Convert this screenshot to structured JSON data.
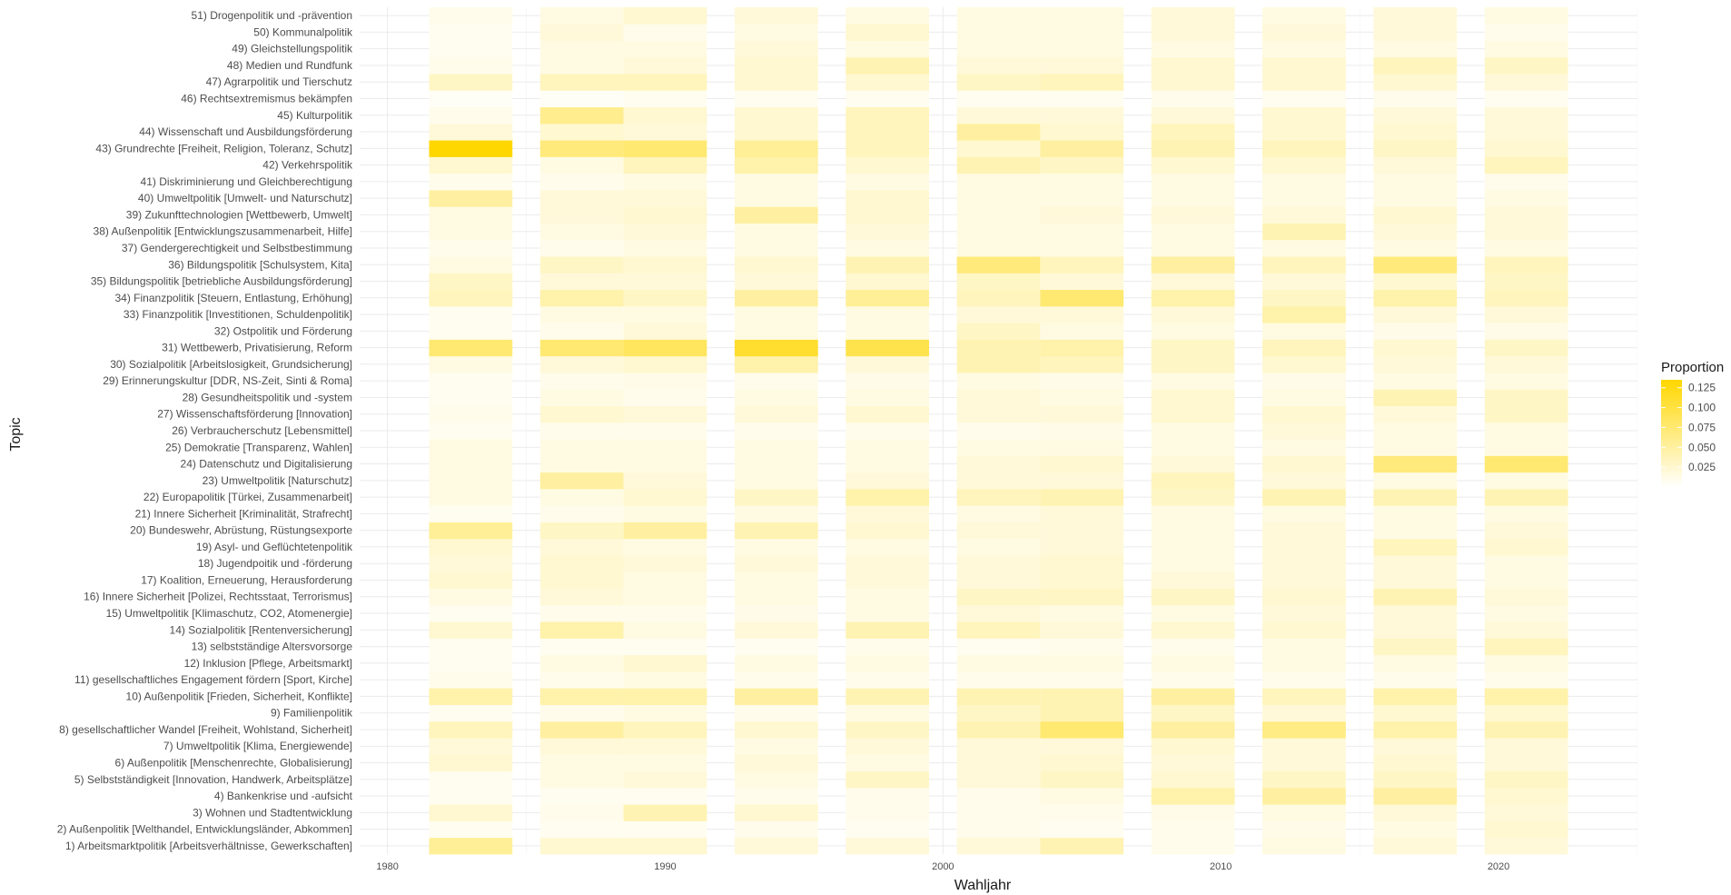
{
  "chart_data": {
    "type": "heatmap",
    "xlabel": "Wahljahr",
    "ylabel": "Topic",
    "x_ticks": [
      1980,
      1990,
      2000,
      2010,
      2020
    ],
    "xlim": [
      1979,
      2025
    ],
    "years": [
      1983,
      1987,
      1990,
      1994,
      1998,
      2002,
      2005,
      2009,
      2013,
      2017,
      2021
    ],
    "topics": [
      "1) Arbeitsmarktpolitik [Arbeitsverhältnisse, Gewerkschaften]",
      "2) Außenpolitik [Welthandel, Entwicklungsländer, Abkommen]",
      "3) Wohnen und Stadtentwicklung",
      "4) Bankenkrise und -aufsicht",
      "5) Selbstständigkeit [Innovation, Handwerk, Arbeitsplätze]",
      "6) Außenpolitik [Menschenrechte, Globalisierung]",
      "7) Umweltpolitik [Klima, Energiewende]",
      "8) gesellschaftlicher Wandel [Freiheit, Wohlstand, Sicherheit]",
      "9) Familienpolitik",
      "10) Außenpolitik [Frieden, Sicherheit, Konflikte]",
      "11) gesellschaftliches Engagement fördern [Sport, Kirche]",
      "12) Inklusion [Pflege, Arbeitsmarkt]",
      "13) selbstständige Altersvorsorge",
      "14) Sozialpolitik [Rentenversicherung]",
      "15) Umweltpolitik [Klimaschutz, CO2, Atomenergie]",
      "16) Innere Sicherheit [Polizei, Rechtsstaat, Terrorismus]",
      "17) Koalition, Erneuerung, Herausforderung",
      "18) Jugendpoitik und -förderung",
      "19) Asyl- und Geflüchtetenpolitik",
      "20) Bundeswehr, Abrüstung, Rüstungsexporte",
      "21) Innere Sicherheit [Kriminalität, Strafrecht]",
      "22) Europapolitik [Türkei, Zusammenarbeit]",
      "23) Umweltpolitik [Naturschutz]",
      "24) Datenschutz und Digitalisierung",
      "25) Demokratie [Transparenz, Wahlen]",
      "26) Verbraucherschutz [Lebensmittel]",
      "27) Wissenschaftsförderung [Innovation]",
      "28) Gesundheitspolitik und -system",
      "29) Erinnerungskultur [DDR, NS-Zeit, Sinti & Roma]",
      "30) Sozialpolitik [Arbeitslosigkeit, Grundsicherung]",
      "31) Wettbewerb, Privatisierung, Reform",
      "32) Ostpolitik und Förderung",
      "33) Finanzpolitik [Investitionen, Schuldenpolitik]",
      "34) Finanzpolitik [Steuern, Entlastung, Erhöhung]",
      "35) Bildungspolitik [betriebliche Ausbildungsförderung]",
      "36) Bildungspolitik [Schulsystem, Kita]",
      "37) Gendergerechtigkeit und Selbstbestimmung",
      "38) Außenpolitik [Entwicklungszusammenarbeit, Hilfe]",
      "39) Zukunfttechnologien [Wettbewerb, Umwelt]",
      "40) Umweltpolitik [Umwelt- und Naturschutz]",
      "41) Diskriminierung und Gleichberechtigung",
      "42) Verkehrspolitik",
      "43) Grundrechte [Freiheit, Religion, Toleranz, Schutz]",
      "44) Wissenschaft und Ausbildungsförderung",
      "45) Kulturpolitik",
      "46) Rechtsextremismus bekämpfen",
      "47) Agrarpolitik und Tierschutz",
      "48) Medien und Rundfunk",
      "49) Gleichstellungspolitik",
      "50) Kommunalpolitik",
      "51) Drogenpolitik und -prävention"
    ],
    "values": [
      [
        0.055,
        0.025,
        0.025,
        0.02,
        0.02,
        0.02,
        0.04,
        0.01,
        0.015,
        0.02,
        0.02
      ],
      [
        0.008,
        0.008,
        0.008,
        0.01,
        0.008,
        0.01,
        0.008,
        0.01,
        0.012,
        0.015,
        0.025
      ],
      [
        0.025,
        0.01,
        0.04,
        0.025,
        0.01,
        0.01,
        0.01,
        0.012,
        0.015,
        0.02,
        0.02
      ],
      [
        0.008,
        0.008,
        0.008,
        0.01,
        0.01,
        0.01,
        0.015,
        0.045,
        0.05,
        0.05,
        0.025
      ],
      [
        0.008,
        0.015,
        0.02,
        0.015,
        0.03,
        0.02,
        0.03,
        0.025,
        0.03,
        0.03,
        0.03
      ],
      [
        0.025,
        0.015,
        0.015,
        0.02,
        0.015,
        0.02,
        0.025,
        0.02,
        0.02,
        0.025,
        0.02
      ],
      [
        0.02,
        0.02,
        0.02,
        0.015,
        0.02,
        0.02,
        0.02,
        0.025,
        0.02,
        0.02,
        0.02
      ],
      [
        0.035,
        0.05,
        0.035,
        0.025,
        0.03,
        0.04,
        0.075,
        0.05,
        0.065,
        0.045,
        0.04
      ],
      [
        0.008,
        0.01,
        0.015,
        0.01,
        0.015,
        0.03,
        0.04,
        0.03,
        0.02,
        0.025,
        0.025
      ],
      [
        0.045,
        0.045,
        0.045,
        0.05,
        0.04,
        0.04,
        0.04,
        0.05,
        0.035,
        0.045,
        0.045
      ],
      [
        0.01,
        0.01,
        0.015,
        0.01,
        0.01,
        0.01,
        0.01,
        0.01,
        0.01,
        0.01,
        0.01
      ],
      [
        0.008,
        0.015,
        0.025,
        0.015,
        0.015,
        0.015,
        0.015,
        0.015,
        0.015,
        0.015,
        0.015
      ],
      [
        0.008,
        0.008,
        0.008,
        0.008,
        0.01,
        0.008,
        0.01,
        0.01,
        0.015,
        0.03,
        0.035
      ],
      [
        0.025,
        0.045,
        0.015,
        0.02,
        0.04,
        0.035,
        0.02,
        0.025,
        0.025,
        0.02,
        0.02
      ],
      [
        0.008,
        0.01,
        0.01,
        0.012,
        0.015,
        0.02,
        0.015,
        0.015,
        0.02,
        0.02,
        0.015
      ],
      [
        0.015,
        0.02,
        0.015,
        0.015,
        0.015,
        0.03,
        0.03,
        0.03,
        0.025,
        0.04,
        0.02
      ],
      [
        0.025,
        0.025,
        0.015,
        0.015,
        0.02,
        0.02,
        0.025,
        0.02,
        0.02,
        0.02,
        0.015
      ],
      [
        0.02,
        0.025,
        0.02,
        0.02,
        0.02,
        0.02,
        0.025,
        0.015,
        0.02,
        0.02,
        0.015
      ],
      [
        0.025,
        0.02,
        0.015,
        0.015,
        0.015,
        0.015,
        0.02,
        0.015,
        0.02,
        0.035,
        0.025
      ],
      [
        0.055,
        0.03,
        0.05,
        0.04,
        0.025,
        0.02,
        0.02,
        0.015,
        0.02,
        0.015,
        0.02
      ],
      [
        0.008,
        0.01,
        0.015,
        0.015,
        0.02,
        0.015,
        0.02,
        0.015,
        0.015,
        0.015,
        0.015
      ],
      [
        0.015,
        0.015,
        0.025,
        0.03,
        0.045,
        0.035,
        0.04,
        0.03,
        0.04,
        0.04,
        0.04
      ],
      [
        0.015,
        0.05,
        0.02,
        0.015,
        0.02,
        0.02,
        0.02,
        0.035,
        0.02,
        0.015,
        0.015
      ],
      [
        0.015,
        0.015,
        0.015,
        0.015,
        0.015,
        0.02,
        0.025,
        0.02,
        0.025,
        0.07,
        0.075
      ],
      [
        0.015,
        0.015,
        0.015,
        0.015,
        0.015,
        0.015,
        0.015,
        0.015,
        0.015,
        0.015,
        0.015
      ],
      [
        0.008,
        0.01,
        0.01,
        0.01,
        0.01,
        0.01,
        0.012,
        0.015,
        0.02,
        0.015,
        0.015
      ],
      [
        0.01,
        0.025,
        0.02,
        0.02,
        0.025,
        0.02,
        0.02,
        0.025,
        0.025,
        0.02,
        0.03
      ],
      [
        0.008,
        0.015,
        0.01,
        0.015,
        0.015,
        0.02,
        0.015,
        0.025,
        0.015,
        0.04,
        0.03
      ],
      [
        0.008,
        0.01,
        0.012,
        0.01,
        0.012,
        0.015,
        0.012,
        0.015,
        0.012,
        0.015,
        0.015
      ],
      [
        0.015,
        0.02,
        0.025,
        0.045,
        0.02,
        0.04,
        0.035,
        0.03,
        0.025,
        0.02,
        0.02
      ],
      [
        0.075,
        0.075,
        0.085,
        0.11,
        0.095,
        0.04,
        0.045,
        0.03,
        0.035,
        0.025,
        0.03
      ],
      [
        0.008,
        0.01,
        0.02,
        0.015,
        0.015,
        0.03,
        0.015,
        0.015,
        0.015,
        0.012,
        0.012
      ],
      [
        0.008,
        0.015,
        0.015,
        0.015,
        0.015,
        0.02,
        0.02,
        0.02,
        0.045,
        0.02,
        0.02
      ],
      [
        0.035,
        0.045,
        0.03,
        0.05,
        0.055,
        0.035,
        0.075,
        0.045,
        0.03,
        0.045,
        0.035
      ],
      [
        0.03,
        0.02,
        0.02,
        0.02,
        0.025,
        0.03,
        0.02,
        0.02,
        0.02,
        0.025,
        0.03
      ],
      [
        0.015,
        0.03,
        0.025,
        0.025,
        0.04,
        0.07,
        0.035,
        0.05,
        0.035,
        0.07,
        0.035
      ],
      [
        0.01,
        0.01,
        0.015,
        0.015,
        0.015,
        0.015,
        0.015,
        0.015,
        0.015,
        0.015,
        0.015
      ],
      [
        0.015,
        0.015,
        0.02,
        0.015,
        0.02,
        0.015,
        0.015,
        0.015,
        0.04,
        0.02,
        0.02
      ],
      [
        0.015,
        0.02,
        0.025,
        0.05,
        0.025,
        0.015,
        0.02,
        0.02,
        0.02,
        0.025,
        0.02
      ],
      [
        0.05,
        0.02,
        0.02,
        0.015,
        0.025,
        0.015,
        0.015,
        0.015,
        0.015,
        0.015,
        0.015
      ],
      [
        0.01,
        0.01,
        0.015,
        0.015,
        0.015,
        0.015,
        0.015,
        0.015,
        0.015,
        0.015,
        0.01
      ],
      [
        0.025,
        0.015,
        0.035,
        0.045,
        0.025,
        0.04,
        0.03,
        0.025,
        0.025,
        0.02,
        0.035
      ],
      [
        0.135,
        0.07,
        0.075,
        0.055,
        0.035,
        0.025,
        0.05,
        0.04,
        0.035,
        0.03,
        0.025
      ],
      [
        0.02,
        0.025,
        0.02,
        0.025,
        0.035,
        0.05,
        0.025,
        0.035,
        0.025,
        0.025,
        0.02
      ],
      [
        0.01,
        0.06,
        0.025,
        0.025,
        0.035,
        0.02,
        0.02,
        0.02,
        0.025,
        0.02,
        0.02
      ],
      [
        0.005,
        0.005,
        0.008,
        0.008,
        0.008,
        0.008,
        0.008,
        0.01,
        0.008,
        0.01,
        0.008
      ],
      [
        0.03,
        0.035,
        0.035,
        0.025,
        0.025,
        0.03,
        0.035,
        0.025,
        0.025,
        0.025,
        0.02
      ],
      [
        0.01,
        0.015,
        0.02,
        0.025,
        0.04,
        0.02,
        0.02,
        0.025,
        0.025,
        0.035,
        0.03
      ],
      [
        0.008,
        0.015,
        0.015,
        0.02,
        0.015,
        0.015,
        0.015,
        0.015,
        0.015,
        0.015,
        0.015
      ],
      [
        0.008,
        0.02,
        0.01,
        0.015,
        0.025,
        0.015,
        0.015,
        0.02,
        0.02,
        0.02,
        0.01
      ],
      [
        0.01,
        0.015,
        0.025,
        0.02,
        0.015,
        0.015,
        0.015,
        0.02,
        0.015,
        0.02,
        0.015
      ]
    ],
    "legend": {
      "title": "Proportion",
      "placement": "right",
      "breaks": [
        "0.125",
        "0.100",
        "0.075",
        "0.050",
        "0.025"
      ],
      "break_values": [
        0.125,
        0.1,
        0.075,
        0.05,
        0.025
      ],
      "range": [
        0,
        0.135
      ],
      "color_low": "#ffffff",
      "color_high": "#ffd700"
    },
    "grid": true
  }
}
